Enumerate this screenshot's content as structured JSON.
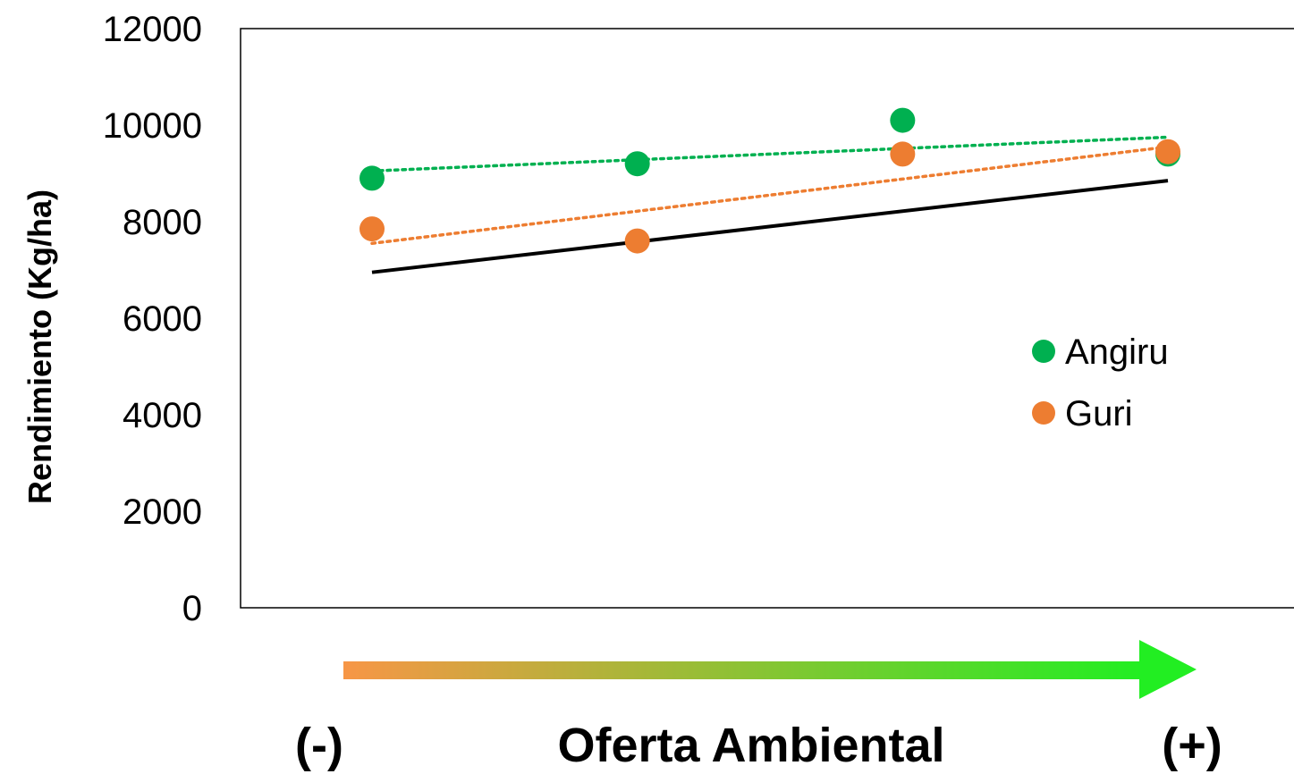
{
  "chart_data": {
    "type": "scatter",
    "ylabel": "Rendimiento (Kg/ha)",
    "xlabel": "Oferta Ambiental",
    "x_low_label": "(-)",
    "x_high_label": "(+)",
    "ylim": [
      0,
      12000
    ],
    "yticks": [
      0,
      2000,
      4000,
      6000,
      8000,
      10000,
      12000
    ],
    "x": [
      1,
      2,
      3,
      4
    ],
    "xlim": [
      0.5,
      4.5
    ],
    "series": [
      {
        "name": "Angiru",
        "color": "#00b050",
        "values": [
          8900,
          9200,
          10100,
          9400
        ],
        "trendline": {
          "style": "dotted",
          "from": [
            1,
            9050
          ],
          "to": [
            4,
            9750
          ]
        }
      },
      {
        "name": "Guri",
        "color": "#ed7d31",
        "values": [
          7850,
          7600,
          9400,
          9450
        ],
        "trendline": {
          "style": "dotted",
          "from": [
            1,
            7550
          ],
          "to": [
            4,
            9550
          ]
        }
      }
    ],
    "reference_line": {
      "color": "#000000",
      "style": "solid",
      "from": [
        1,
        6950
      ],
      "to": [
        4,
        8850
      ]
    },
    "legend_position": "right",
    "grid": false,
    "arrow_gradient": {
      "start_color": "#f79646",
      "end_color": "#22ee22"
    }
  }
}
